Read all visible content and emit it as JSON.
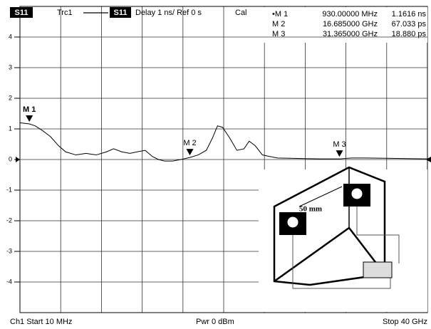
{
  "chart_data": {
    "type": "line",
    "header": {
      "channel_box": "S11",
      "trace": "Trc1",
      "trace_box": "S11",
      "format": "Delay 1 ns/ Ref 0 s",
      "cal": "Cal"
    },
    "marker_table": [
      {
        "name": "•M 1",
        "frequency": "930.00000 MHz",
        "value": "1.1616 ns"
      },
      {
        "name": "M 2",
        "frequency": "16.685000 GHz",
        "value": "67.033 ps"
      },
      {
        "name": "M 3",
        "frequency": "31.365000 GHz",
        "value": "18.880 ps"
      }
    ],
    "footer": {
      "start": "Ch1   Start 10 MHz",
      "power": "Pwr 0 dBm",
      "stop": "Stop 40 GHz"
    },
    "inset_label": "50 mm",
    "xlim": [
      0.01,
      40
    ],
    "ylim": [
      -5,
      5
    ],
    "yticks": [
      -4,
      -3,
      -2,
      -1,
      0,
      1,
      2,
      3,
      4
    ],
    "grid": true,
    "series": [
      {
        "name": "Trc1",
        "color": "#000000",
        "x": [
          0.01,
          0.5,
          0.93,
          1.5,
          2.2,
          3,
          3.8,
          4.5,
          5.5,
          6.5,
          7.5,
          8.5,
          9.2,
          10,
          10.8,
          11.5,
          12.3,
          13,
          13.6,
          14.2,
          15,
          15.8,
          16.685,
          17.5,
          18.3,
          18.9,
          19.4,
          19.9,
          20.6,
          21.3,
          22,
          22.5,
          23.1,
          23.8,
          24.5,
          25.3,
          26.5,
          28,
          29.5,
          31.365,
          32.5,
          34,
          36,
          38,
          40
        ],
        "values": [
          1.2,
          1.18,
          1.1616,
          1.1,
          0.95,
          0.75,
          0.45,
          0.25,
          0.15,
          0.2,
          0.15,
          0.25,
          0.35,
          0.25,
          0.2,
          0.25,
          0.3,
          0.1,
          0.0,
          -0.05,
          -0.05,
          0.0,
          0.067,
          0.15,
          0.3,
          0.7,
          1.1,
          1.05,
          0.7,
          0.3,
          0.35,
          0.6,
          0.45,
          0.15,
          0.1,
          0.05,
          0.04,
          0.03,
          0.02,
          0.0189,
          0.05,
          0.05,
          0.04,
          0.03,
          0.02
        ]
      }
    ],
    "markers": [
      {
        "label": "M 1",
        "x": 0.93,
        "y": 1.1616
      },
      {
        "label": "M 2",
        "x": 16.685,
        "y": 0.067
      },
      {
        "label": "M 3",
        "x": 31.365,
        "y": 0.0189
      }
    ]
  }
}
